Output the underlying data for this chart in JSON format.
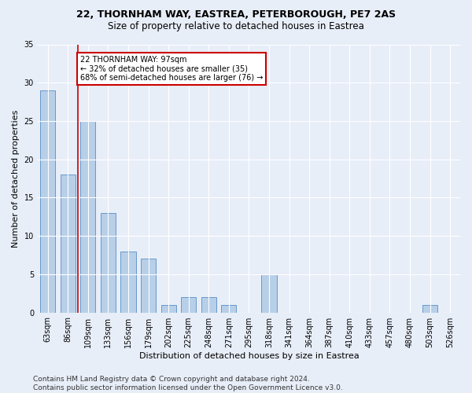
{
  "title1": "22, THORNHAM WAY, EASTREA, PETERBOROUGH, PE7 2AS",
  "title2": "Size of property relative to detached houses in Eastrea",
  "xlabel": "Distribution of detached houses by size in Eastrea",
  "ylabel": "Number of detached properties",
  "categories": [
    "63sqm",
    "86sqm",
    "109sqm",
    "133sqm",
    "156sqm",
    "179sqm",
    "202sqm",
    "225sqm",
    "248sqm",
    "271sqm",
    "295sqm",
    "318sqm",
    "341sqm",
    "364sqm",
    "387sqm",
    "410sqm",
    "433sqm",
    "457sqm",
    "480sqm",
    "503sqm",
    "526sqm"
  ],
  "values": [
    29,
    18,
    25,
    13,
    8,
    7,
    1,
    2,
    2,
    1,
    0,
    5,
    0,
    0,
    0,
    0,
    0,
    0,
    0,
    1,
    0
  ],
  "bar_color": "#b8cfe8",
  "bar_edge_color": "#6699cc",
  "bar_width": 0.75,
  "ylim": [
    0,
    35
  ],
  "yticks": [
    0,
    5,
    10,
    15,
    20,
    25,
    30,
    35
  ],
  "red_line_x": 1.5,
  "red_line_color": "#cc0000",
  "annotation_text": "22 THORNHAM WAY: 97sqm\n← 32% of detached houses are smaller (35)\n68% of semi-detached houses are larger (76) →",
  "annotation_box_color": "#ffffff",
  "annotation_box_edge": "#cc0000",
  "footer": "Contains HM Land Registry data © Crown copyright and database right 2024.\nContains public sector information licensed under the Open Government Licence v3.0.",
  "bg_color": "#e8eef8",
  "plot_bg_color": "#e8eef8",
  "grid_color": "#ffffff",
  "title1_fontsize": 9,
  "title2_fontsize": 8.5,
  "xlabel_fontsize": 8,
  "ylabel_fontsize": 8,
  "tick_fontsize": 7,
  "footer_fontsize": 6.5,
  "annot_fontsize": 7
}
